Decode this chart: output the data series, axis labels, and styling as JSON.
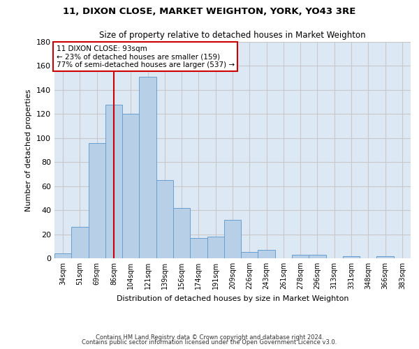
{
  "title_line1": "11, DIXON CLOSE, MARKET WEIGHTON, YORK, YO43 3RE",
  "title_line2": "Size of property relative to detached houses in Market Weighton",
  "xlabel": "Distribution of detached houses by size in Market Weighton",
  "ylabel": "Number of detached properties",
  "categories": [
    "34sqm",
    "51sqm",
    "69sqm",
    "86sqm",
    "104sqm",
    "121sqm",
    "139sqm",
    "156sqm",
    "174sqm",
    "191sqm",
    "209sqm",
    "226sqm",
    "243sqm",
    "261sqm",
    "278sqm",
    "296sqm",
    "313sqm",
    "331sqm",
    "348sqm",
    "366sqm",
    "383sqm"
  ],
  "values": [
    4,
    26,
    96,
    128,
    120,
    151,
    65,
    42,
    17,
    18,
    32,
    5,
    7,
    0,
    3,
    3,
    0,
    2,
    0,
    2,
    0
  ],
  "bar_color": "#b8cfe8",
  "bar_edge_color": "#6a9fd0",
  "vline_x": 3,
  "vline_color": "#cc0000",
  "annotation_line1": "11 DIXON CLOSE: 93sqm",
  "annotation_line2": "← 23% of detached houses are smaller (159)",
  "annotation_line3": "77% of semi-detached houses are larger (537) →",
  "annotation_box_color": "#ffffff",
  "annotation_box_edge": "#cc0000",
  "ylim": [
    0,
    180
  ],
  "yticks": [
    0,
    20,
    40,
    60,
    80,
    100,
    120,
    140,
    160,
    180
  ],
  "grid_color": "#c8c8c8",
  "bg_color": "#dde8f5",
  "footer_line1": "Contains HM Land Registry data © Crown copyright and database right 2024.",
  "footer_line2": "Contains public sector information licensed under the Open Government Licence v3.0."
}
